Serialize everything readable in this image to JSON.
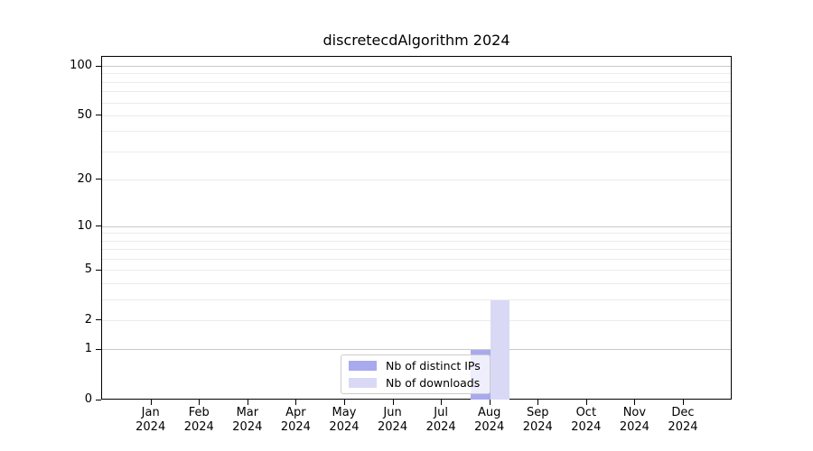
{
  "chart_data": {
    "type": "bar",
    "title": "discretecdAlgorithm 2024",
    "x": {
      "months": [
        "Jan",
        "Feb",
        "Mar",
        "Apr",
        "May",
        "Jun",
        "Jul",
        "Aug",
        "Sep",
        "Oct",
        "Nov",
        "Dec"
      ],
      "year": "2024"
    },
    "series": [
      {
        "name": "Nb of distinct IPs",
        "color": "#a9a9ee",
        "values": [
          0,
          0,
          0,
          0,
          0,
          0,
          0,
          1,
          0,
          0,
          0,
          0
        ]
      },
      {
        "name": "Nb of downloads",
        "color": "#d9d9f6",
        "values": [
          0,
          0,
          0,
          0,
          0,
          0,
          0,
          3,
          0,
          0,
          0,
          0
        ]
      }
    ],
    "y_axis": {
      "scale": "log1p",
      "tick_values": [
        0,
        1,
        2,
        5,
        10,
        20,
        50,
        100
      ],
      "major_grid_values": [
        1,
        10,
        100
      ],
      "minor_grid_values": [
        2,
        3,
        4,
        5,
        6,
        7,
        8,
        9,
        20,
        30,
        40,
        50,
        60,
        70,
        80,
        90
      ],
      "max": 115
    },
    "legend": {
      "position": "lower center"
    },
    "colors": {
      "major_grid": "#c9c9c9",
      "minor_grid": "#ebebeb",
      "spine": "#000000",
      "background": "#ffffff"
    }
  }
}
